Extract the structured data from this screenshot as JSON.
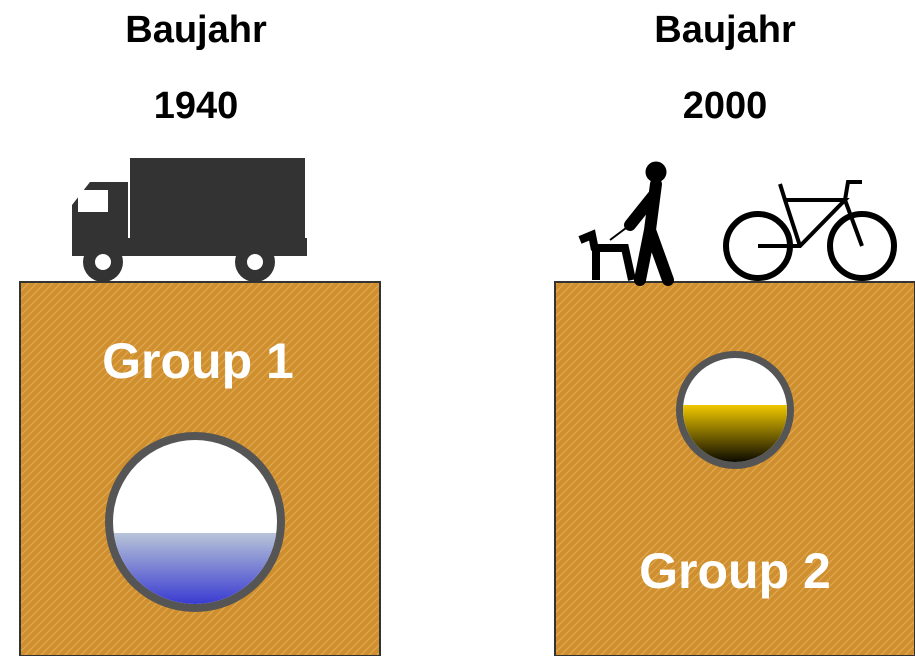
{
  "left": {
    "label": "Baujahr",
    "year": "1940",
    "group": "Group 1"
  },
  "right": {
    "label": "Baujahr",
    "year": "2000",
    "group": "Group 2"
  }
}
